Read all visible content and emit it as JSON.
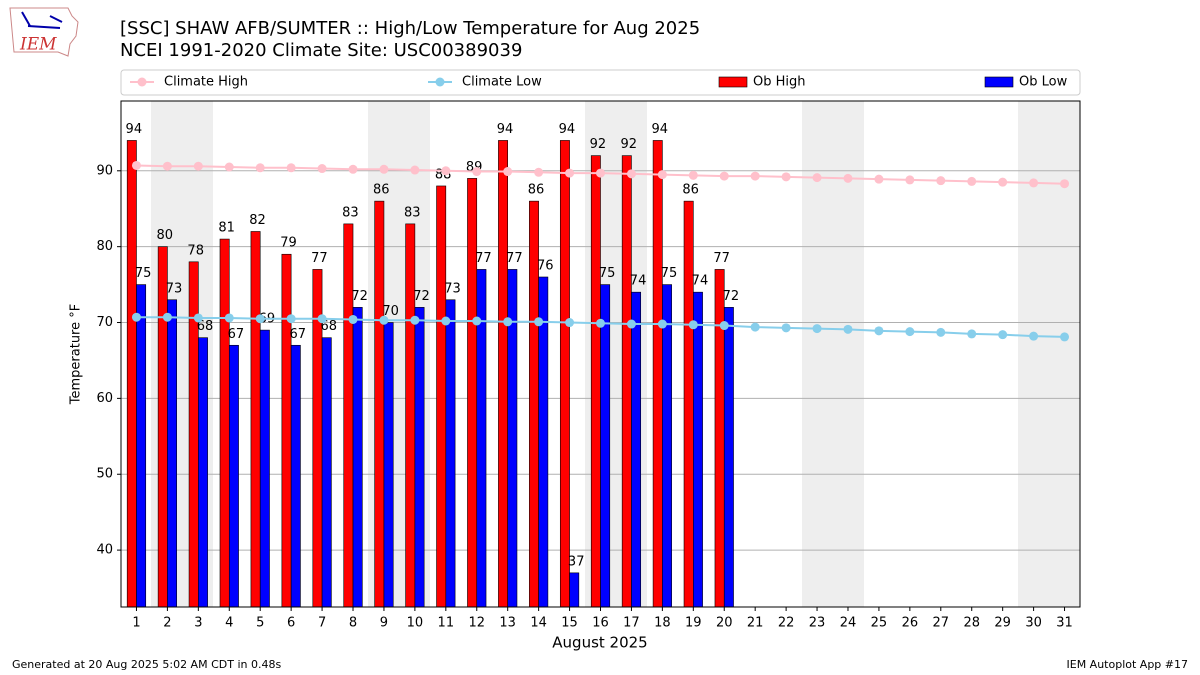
{
  "chart_data": {
    "type": "bar",
    "title": "[SSC] SHAW AFB/SUMTER :: High/Low Temperature for Aug 2025",
    "subtitle": "NCEI 1991-2020 Climate Site: USC00389039",
    "x_label": "August 2025",
    "y_label": "Temperature °F",
    "footer_left": "Generated at 20 Aug 2025 5:02 AM CDT in 0.48s",
    "footer_right": "IEM Autoplot App #17",
    "logo_text": "IEM",
    "categories": [
      "1",
      "2",
      "3",
      "4",
      "5",
      "6",
      "7",
      "8",
      "9",
      "10",
      "11",
      "12",
      "13",
      "14",
      "15",
      "16",
      "17",
      "18",
      "19",
      "20",
      "21",
      "22",
      "23",
      "24",
      "25",
      "26",
      "27",
      "28",
      "29",
      "30",
      "31"
    ],
    "ylim": [
      32.5,
      99.2
    ],
    "yticks": [
      40,
      50,
      60,
      70,
      80,
      90
    ],
    "grid": true,
    "series": [
      {
        "name": "Climate High",
        "type": "line",
        "color": "#ffc0cb",
        "values": [
          90.7,
          90.6,
          90.6,
          90.5,
          90.4,
          90.4,
          90.3,
          90.2,
          90.2,
          90.1,
          90.0,
          89.9,
          89.9,
          89.8,
          89.7,
          89.7,
          89.6,
          89.5,
          89.4,
          89.3,
          89.3,
          89.2,
          89.1,
          89.0,
          88.9,
          88.8,
          88.7,
          88.6,
          88.5,
          88.4,
          88.3
        ]
      },
      {
        "name": "Climate Low",
        "type": "line",
        "color": "#87ceeb",
        "values": [
          70.7,
          70.7,
          70.6,
          70.6,
          70.5,
          70.5,
          70.5,
          70.4,
          70.3,
          70.3,
          70.2,
          70.2,
          70.1,
          70.1,
          70.0,
          69.9,
          69.8,
          69.8,
          69.7,
          69.6,
          69.4,
          69.3,
          69.2,
          69.1,
          68.9,
          68.8,
          68.7,
          68.5,
          68.4,
          68.2,
          68.1
        ]
      },
      {
        "name": "Ob High",
        "type": "bar",
        "color": "#ff0000",
        "values": [
          94,
          80,
          78,
          81,
          82,
          79,
          77,
          83,
          86,
          83,
          88,
          89,
          94,
          86,
          94,
          92,
          92,
          94,
          86,
          77,
          null,
          null,
          null,
          null,
          null,
          null,
          null,
          null,
          null,
          null,
          null
        ]
      },
      {
        "name": "Ob Low",
        "type": "bar",
        "color": "#0000ff",
        "values": [
          75,
          73,
          68,
          67,
          69,
          67,
          68,
          72,
          70,
          72,
          73,
          77,
          77,
          76,
          37,
          75,
          74,
          75,
          74,
          72,
          null,
          null,
          null,
          null,
          null,
          null,
          null,
          null,
          null,
          null,
          null
        ]
      }
    ]
  }
}
